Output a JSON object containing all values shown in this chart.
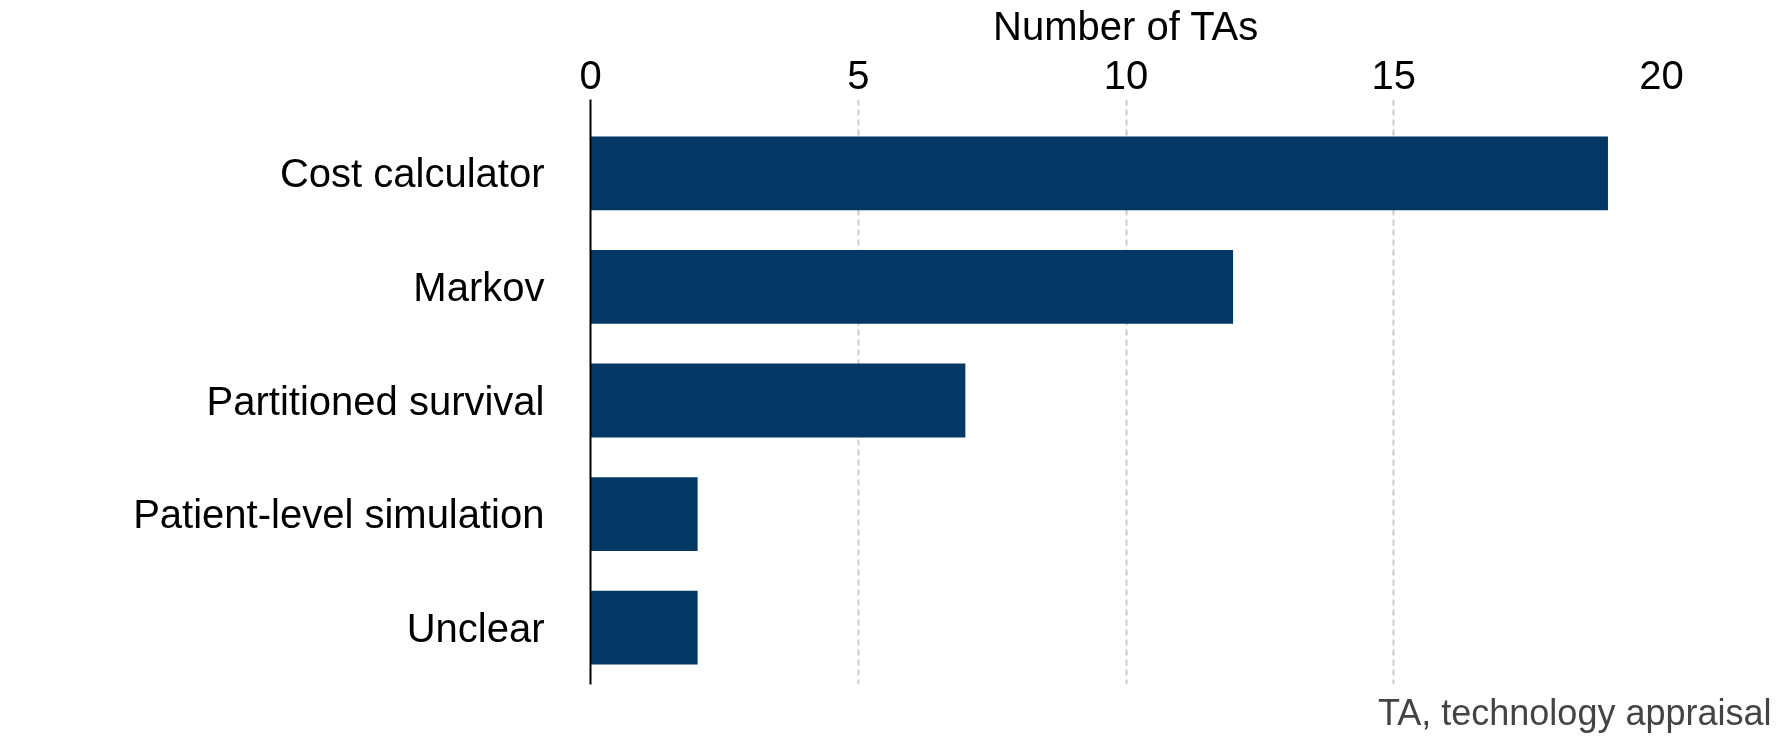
{
  "chart_data": {
    "type": "bar",
    "orientation": "horizontal",
    "xlabel": "Number of TAs",
    "categories": [
      "Cost calculator",
      "Markov",
      "Partitioned survival",
      "Patient-level simulation",
      "Unclear"
    ],
    "values": [
      19,
      12,
      7,
      2,
      2
    ],
    "color": "#033764",
    "xlim": [
      0,
      20
    ],
    "xticks": [
      0,
      5,
      10,
      15,
      20
    ],
    "grid": "x",
    "annotations": [
      "TA, technology appraisal"
    ]
  }
}
